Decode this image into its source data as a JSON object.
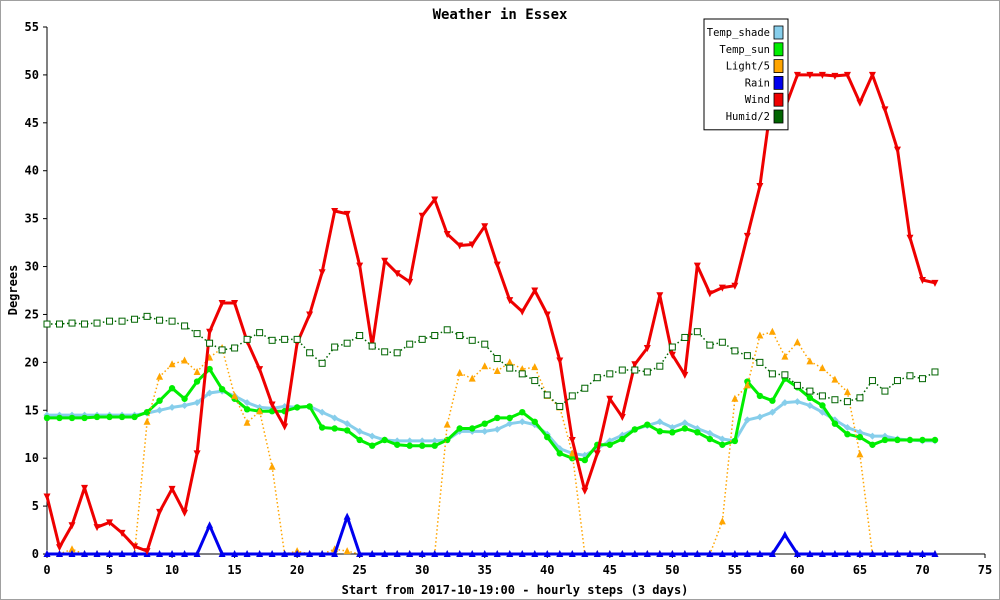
{
  "chart_data": {
    "type": "line",
    "title": "Weather in Essex",
    "xlabel": "Start from 2017-10-19:00 - hourly steps (3 days)",
    "ylabel": "Degrees",
    "xlim": [
      0,
      75
    ],
    "ylim": [
      0,
      55
    ],
    "xticks": [
      0,
      5,
      10,
      15,
      20,
      25,
      30,
      35,
      40,
      45,
      50,
      55,
      60,
      65,
      70,
      75
    ],
    "yticks": [
      0,
      5,
      10,
      15,
      20,
      25,
      30,
      35,
      40,
      45,
      50,
      55
    ],
    "grid": false,
    "legend": "top-right",
    "series": [
      {
        "name": "Temp_shade",
        "color": "#87ceeb",
        "marker": "diamond",
        "values": [
          14.5,
          14.5,
          14.5,
          14.5,
          14.5,
          14.5,
          14.5,
          14.5,
          14.7,
          15.0,
          15.3,
          15.5,
          15.8,
          16.8,
          17.0,
          16.5,
          15.8,
          15.3,
          15.2,
          15.4,
          15.3,
          15.4,
          14.8,
          14.2,
          13.6,
          12.8,
          12.3,
          11.9,
          11.8,
          11.8,
          11.8,
          11.8,
          11.9,
          12.8,
          12.8,
          12.8,
          13.0,
          13.6,
          13.8,
          13.5,
          12.5,
          11.0,
          10.5,
          10.3,
          11.0,
          11.8,
          12.4,
          13.0,
          13.4,
          13.8,
          13.2,
          13.7,
          13.1,
          12.6,
          12.0,
          11.8,
          14.0,
          14.3,
          14.8,
          15.8,
          15.9,
          15.5,
          14.8,
          14.0,
          13.2,
          12.7,
          12.3,
          12.3,
          12.0,
          11.9,
          11.8,
          11.8
        ]
      },
      {
        "name": "Temp_sun",
        "color": "#00ee00",
        "marker": "circle",
        "values": [
          14.2,
          14.2,
          14.2,
          14.2,
          14.3,
          14.3,
          14.3,
          14.3,
          14.8,
          16.0,
          17.3,
          16.2,
          18.0,
          19.3,
          17.2,
          16.2,
          15.1,
          14.9,
          14.9,
          14.9,
          15.3,
          15.4,
          13.2,
          13.1,
          12.9,
          11.9,
          11.3,
          11.9,
          11.4,
          11.3,
          11.3,
          11.3,
          11.9,
          13.1,
          13.1,
          13.6,
          14.2,
          14.2,
          14.8,
          13.8,
          12.2,
          10.5,
          10.0,
          9.8,
          11.4,
          11.4,
          12.0,
          13.0,
          13.5,
          12.8,
          12.7,
          13.1,
          12.7,
          12.0,
          11.4,
          11.8,
          18.0,
          16.5,
          16.0,
          18.3,
          17.4,
          16.3,
          15.5,
          13.6,
          12.5,
          12.2,
          11.4,
          11.9,
          11.9,
          11.9,
          11.9,
          11.9
        ]
      },
      {
        "name": "Light/5",
        "color": "#ffa500",
        "marker": "triangle-up",
        "line": "dotted",
        "values": [
          0,
          0,
          0.5,
          0,
          0,
          0,
          0,
          0,
          13.8,
          18.5,
          19.8,
          20.2,
          19.0,
          20.5,
          21.5,
          16.5,
          13.7,
          14.9,
          9.1,
          0,
          0.3,
          0,
          0,
          0.5,
          0.3,
          0,
          0,
          0,
          0,
          0,
          0,
          0,
          13.5,
          18.9,
          18.3,
          19.6,
          19.1,
          20.0,
          19.3,
          19.5,
          16.5,
          15.3,
          10.5,
          0,
          0,
          0,
          0,
          0,
          0,
          0,
          0,
          0,
          0,
          0,
          3.4,
          16.2,
          17.6,
          22.8,
          23.2,
          20.6,
          22.1,
          20.1,
          19.4,
          18.2,
          16.9,
          10.4,
          0,
          0,
          0,
          0,
          0,
          0
        ]
      },
      {
        "name": "Rain",
        "color": "#0000ee",
        "marker": "triangle-up",
        "values": [
          0,
          0,
          0,
          0,
          0,
          0,
          0,
          0,
          0,
          0,
          0,
          0,
          0,
          3.0,
          0,
          0,
          0,
          0,
          0,
          0,
          0,
          0,
          0,
          0,
          3.9,
          0,
          0,
          0,
          0,
          0,
          0,
          0,
          0,
          0,
          0,
          0,
          0,
          0,
          0,
          0,
          0,
          0,
          0,
          0,
          0,
          0,
          0,
          0,
          0,
          0,
          0,
          0,
          0,
          0,
          0,
          0,
          0,
          0,
          0,
          2.0,
          0,
          0,
          0,
          0,
          0,
          0,
          0,
          0,
          0,
          0,
          0,
          0
        ]
      },
      {
        "name": "Wind",
        "color": "#ee0000",
        "marker": "triangle-down",
        "values": [
          6.0,
          0.7,
          3.0,
          6.9,
          2.8,
          3.3,
          2.2,
          0.8,
          0.3,
          4.4,
          6.8,
          4.3,
          10.5,
          23.2,
          26.2,
          26.2,
          22.2,
          19.3,
          15.6,
          13.3,
          22.0,
          25.0,
          29.4,
          35.8,
          35.5,
          30.1,
          21.7,
          30.6,
          29.3,
          28.4,
          35.3,
          37.0,
          33.4,
          32.2,
          32.3,
          34.2,
          30.2,
          26.5,
          25.3,
          27.5,
          25.0,
          20.2,
          11.9,
          6.6,
          10.5,
          16.2,
          14.3,
          19.8,
          21.5,
          27.0,
          20.8,
          18.7,
          30.1,
          27.2,
          27.8,
          28.0,
          33.2,
          38.4,
          48.0,
          46.5,
          50.0,
          50.0,
          50.0,
          49.9,
          50.0,
          47.1,
          50.0,
          46.4,
          42.2,
          33.0,
          28.6,
          28.3
        ]
      },
      {
        "name": "Humid/2",
        "color": "#006400",
        "marker": "square-open",
        "line": "dotted",
        "values": [
          24.0,
          24.0,
          24.1,
          24.0,
          24.1,
          24.3,
          24.3,
          24.5,
          24.8,
          24.4,
          24.3,
          23.8,
          23.0,
          22.0,
          21.3,
          21.5,
          22.4,
          23.1,
          22.3,
          22.4,
          22.4,
          21.0,
          19.9,
          21.6,
          22.0,
          22.8,
          21.7,
          21.1,
          21.0,
          21.9,
          22.4,
          22.8,
          23.4,
          22.8,
          22.3,
          21.9,
          20.4,
          19.4,
          18.8,
          18.1,
          16.6,
          15.4,
          16.5,
          17.3,
          18.4,
          18.8,
          19.2,
          19.2,
          19.0,
          19.6,
          21.6,
          22.6,
          23.2,
          21.8,
          22.1,
          21.2,
          20.7,
          20.0,
          18.8,
          18.7,
          17.6,
          17.0,
          16.5,
          16.1,
          15.9,
          16.3,
          18.1,
          17.0,
          18.1,
          18.6,
          18.3,
          19.0
        ]
      }
    ]
  }
}
